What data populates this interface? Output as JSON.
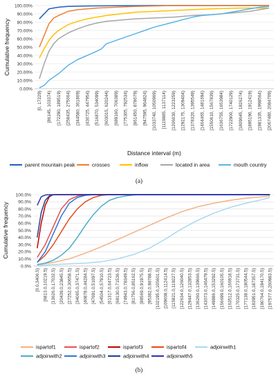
{
  "chart_data": [
    {
      "type": "line",
      "caption": "(a)",
      "xlabel": "Distance interval (m)",
      "ylabel": "Cumulative frequency",
      "ylim": [
        0,
        100
      ],
      "yticks": [
        "0.00%",
        "10.00%",
        "20.00%",
        "30.00%",
        "40.00%",
        "50.00%",
        "60.00%",
        "70.00%",
        "80.00%",
        "90.00%",
        "100.00%"
      ],
      "grid": true,
      "legend_position": "bottom",
      "categories": [
        "[0, 17229)",
        "[86145, 103374)",
        "[172290, 189519)",
        "[258435, 275664)",
        "[344580, 361809)",
        "[430725, 447954)",
        "[516870, 534099)",
        "[603015, 620244)",
        "[689160, 706389)",
        "[775305, 792534)",
        "[861450, 878679)",
        "[947595, 964824)",
        "[1033740, 1050969)",
        "[1119885, 1137114)",
        "[1206030, 1223259)",
        "[1292175, 1309404)",
        "[1378320, 1395549)",
        "[1464465, 1481694)",
        "[1550610, 1567839)",
        "[1636755, 1653984)",
        "[1722900, 1740129)",
        "[1809045, 1826274)",
        "[1895190, 1912419)",
        "[1981335, 1998564)",
        "[2067480, 2084709)"
      ],
      "series": [
        {
          "name": "parent mountain peak",
          "color": "#1f5fbf",
          "values": [
            [
              0,
              84
            ],
            [
              1,
              96
            ],
            [
              2,
              98
            ],
            [
              3,
              99
            ],
            [
              5,
              99.5
            ],
            [
              8,
              99.8
            ],
            [
              12,
              100
            ],
            [
              24,
              100
            ]
          ]
        },
        {
          "name": "crosses",
          "color": "#ed7d31",
          "values": [
            [
              0,
              50
            ],
            [
              0.5,
              64
            ],
            [
              1,
              78
            ],
            [
              1.5,
              85
            ],
            [
              2,
              88
            ],
            [
              3,
              93
            ],
            [
              4,
              95
            ],
            [
              6,
              97
            ],
            [
              10,
              99
            ],
            [
              14,
              100
            ],
            [
              24,
              100
            ]
          ]
        },
        {
          "name": "inflow",
          "color": "#ffc000",
          "values": [
            [
              0,
              37
            ],
            [
              0.5,
              48
            ],
            [
              1,
              58
            ],
            [
              1.5,
              65
            ],
            [
              2,
              70
            ],
            [
              3,
              77
            ],
            [
              4,
              81
            ],
            [
              5,
              84
            ],
            [
              7,
              88
            ],
            [
              10,
              92
            ],
            [
              14,
              94
            ],
            [
              18,
              96
            ],
            [
              21,
              97
            ],
            [
              24,
              97
            ]
          ]
        },
        {
          "name": "located in area",
          "color": "#a5a5a5",
          "values": [
            [
              0,
              12
            ],
            [
              0.5,
              30
            ],
            [
              1,
              45
            ],
            [
              1.5,
              54
            ],
            [
              2,
              60
            ],
            [
              3,
              67
            ],
            [
              4,
              72
            ],
            [
              5,
              76
            ],
            [
              6,
              79
            ],
            [
              7,
              81
            ],
            [
              8,
              82
            ],
            [
              10,
              84
            ],
            [
              12,
              85
            ],
            [
              14,
              86
            ],
            [
              16,
              88
            ],
            [
              18,
              89
            ],
            [
              20,
              91
            ],
            [
              22,
              93
            ],
            [
              24,
              97
            ]
          ]
        },
        {
          "name": "mouth country",
          "color": "#5ab4e6",
          "values": [
            [
              0,
              1
            ],
            [
              0.5,
              4
            ],
            [
              1,
              10
            ],
            [
              2,
              18
            ],
            [
              3,
              28
            ],
            [
              4,
              35
            ],
            [
              5,
              40
            ],
            [
              6,
              45
            ],
            [
              6.5,
              48
            ],
            [
              7,
              54
            ],
            [
              8,
              58
            ],
            [
              9,
              62
            ],
            [
              10,
              66
            ],
            [
              11,
              70
            ],
            [
              12,
              74
            ],
            [
              13,
              77
            ],
            [
              14,
              80
            ],
            [
              15,
              83
            ],
            [
              16,
              86
            ],
            [
              17,
              88
            ],
            [
              18,
              89
            ],
            [
              19,
              90
            ],
            [
              20,
              92
            ],
            [
              21,
              94
            ],
            [
              22,
              96
            ],
            [
              23,
              98
            ],
            [
              24,
              99
            ]
          ]
        }
      ]
    },
    {
      "type": "line",
      "caption": "(b)",
      "xlabel": "",
      "ylabel": "Cumulative frequency",
      "ylim": [
        0,
        100
      ],
      "yticks": [
        "0.0%",
        "10.0%",
        "20.0%",
        "30.0%",
        "40.0%",
        "50.0%",
        "60.0%",
        "70.0%",
        "80.0%",
        "90.0%",
        "100.0%"
      ],
      "grid": true,
      "legend_position": "bottom",
      "categories": [
        "[0.0,3406.5)",
        "[6813.0,10219.5)",
        "[13626.0,17032.5)",
        "[20439.0,23845.5)",
        "[27252.0,30658.5)",
        "[34065.0,37471.5)",
        "[40878.0,44284.5)",
        "[47691.0,51097.5)",
        "[54504.0,57910.5)",
        "[61317.0,64723.5)",
        "[68130.0,71536.5)",
        "[74943.0,78349.5)",
        "[81756.0,85162.5)",
        "[88569.0,91975.5)",
        "[95382.0,98788.5)",
        "[102195.0,105601.5)",
        "[109008.0,112414.5)",
        "[115821.0,119227.5)",
        "[122634.0,126040.5)",
        "[129447.0,132853.5)",
        "[136260.0,139666.5)",
        "[143073.0,146479.5)",
        "[149886.0,153292.5)",
        "[156699.0,160105.5)",
        "[163512.0,166918.5)",
        "[170325.0,173731.5)",
        "[177138.0,180544.5)",
        "[183951.0,187357.5)",
        "[190764.0,194170.5)",
        "[197577.0,200983.5)"
      ],
      "series": [
        {
          "name": "ispartof1",
          "color": "#f4b183",
          "values": [
            [
              0,
              2
            ],
            [
              2,
              5
            ],
            [
              4,
              10
            ],
            [
              6,
              18
            ],
            [
              8,
              27
            ],
            [
              10,
              37
            ],
            [
              12,
              47
            ],
            [
              14,
              57
            ],
            [
              16,
              67
            ],
            [
              18,
              76
            ],
            [
              20,
              83
            ],
            [
              22,
              88
            ],
            [
              24,
              92
            ],
            [
              26,
              95
            ],
            [
              28,
              97
            ],
            [
              29,
              98
            ]
          ]
        },
        {
          "name": "ispartof2",
          "color": "#e94f4f",
          "values": [
            [
              0,
              12
            ],
            [
              1,
              30
            ],
            [
              2,
              55
            ],
            [
              3,
              80
            ],
            [
              4,
              93
            ],
            [
              5,
              98
            ],
            [
              6,
              100
            ],
            [
              29,
              100
            ]
          ]
        },
        {
          "name": "ispartof3",
          "color": "#c00000",
          "values": [
            [
              0,
              25
            ],
            [
              0.5,
              60
            ],
            [
              1,
              85
            ],
            [
              1.5,
              97
            ],
            [
              2,
              100
            ],
            [
              29,
              100
            ]
          ]
        },
        {
          "name": "ispartof4",
          "color": "#e64a19",
          "values": [
            [
              0,
              5
            ],
            [
              1,
              15
            ],
            [
              2,
              30
            ],
            [
              3,
              48
            ],
            [
              4,
              66
            ],
            [
              5,
              80
            ],
            [
              6,
              90
            ],
            [
              7,
              96
            ],
            [
              8,
              99
            ],
            [
              9,
              100
            ],
            [
              29,
              100
            ]
          ]
        },
        {
          "name": "adjoinwith1",
          "color": "#a9d8f0",
          "values": [
            [
              0,
              1
            ],
            [
              2,
              2
            ],
            [
              4,
              3
            ],
            [
              6,
              4
            ],
            [
              8,
              6
            ],
            [
              10,
              10
            ],
            [
              12,
              16
            ],
            [
              14,
              25
            ],
            [
              16,
              38
            ],
            [
              18,
              52
            ],
            [
              20,
              64
            ],
            [
              22,
              74
            ],
            [
              24,
              82
            ],
            [
              26,
              88
            ],
            [
              28,
              93
            ],
            [
              29,
              96
            ]
          ]
        },
        {
          "name": "adjoinwith2",
          "color": "#4bacc6",
          "values": [
            [
              0,
              2
            ],
            [
              1,
              4
            ],
            [
              2,
              8
            ],
            [
              3,
              15
            ],
            [
              4,
              25
            ],
            [
              5,
              40
            ],
            [
              6,
              57
            ],
            [
              7,
              72
            ],
            [
              8,
              84
            ],
            [
              9,
              92
            ],
            [
              10,
              96
            ],
            [
              11,
              98
            ],
            [
              12,
              99.5
            ],
            [
              13,
              100
            ],
            [
              29,
              100
            ]
          ]
        },
        {
          "name": "adjoinwith3",
          "color": "#2e75d6",
          "values": [
            [
              0,
              5
            ],
            [
              1,
              20
            ],
            [
              2,
              45
            ],
            [
              3,
              70
            ],
            [
              4,
              88
            ],
            [
              5,
              96
            ],
            [
              6,
              99
            ],
            [
              7,
              100
            ],
            [
              29,
              100
            ]
          ]
        },
        {
          "name": "adjoinwith4",
          "color": "#1f3f8f",
          "values": [
            [
              0,
              40
            ],
            [
              0.5,
              75
            ],
            [
              1,
              92
            ],
            [
              1.5,
              98
            ],
            [
              2,
              100
            ],
            [
              29,
              100
            ]
          ]
        },
        {
          "name": "adjoinwith5",
          "color": "#3030b0",
          "values": [
            [
              0,
              85
            ],
            [
              0.5,
              97
            ],
            [
              1,
              99.5
            ],
            [
              1.5,
              100
            ],
            [
              29,
              100
            ]
          ]
        }
      ]
    }
  ]
}
